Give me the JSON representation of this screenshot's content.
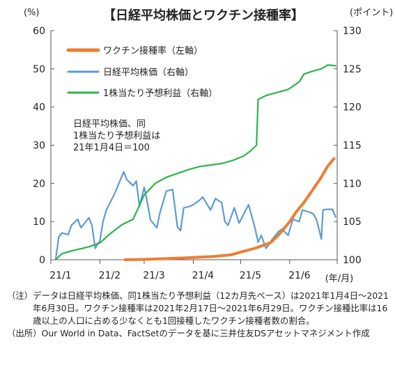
{
  "chart_data": {
    "type": "line",
    "title": "【日経平均株価とワクチン接種率】",
    "left_axis_unit": "(%)",
    "right_axis_unit": "(ポイント)",
    "x_unit": "(年/月)",
    "left_ylim": [
      0,
      60
    ],
    "left_ticks": [
      "0",
      "10",
      "20",
      "30",
      "40",
      "50",
      "60"
    ],
    "right_ylim": [
      100,
      130
    ],
    "right_ticks": [
      "100",
      "105",
      "110",
      "115",
      "120",
      "125",
      "130"
    ],
    "x_range": [
      "2021-01-01",
      "2021-07-01"
    ],
    "x_ticks": [
      {
        "date": "2021-01-01",
        "label": "21/1"
      },
      {
        "date": "2021-02-01",
        "label": "21/2"
      },
      {
        "date": "2021-03-01",
        "label": "21/3"
      },
      {
        "date": "2021-04-01",
        "label": "21/4"
      },
      {
        "date": "2021-05-01",
        "label": "21/5"
      },
      {
        "date": "2021-06-01",
        "label": "21/6"
      }
    ],
    "grid": false,
    "legend_position": "top-left",
    "annotation": [
      "日経平均株価、同",
      "1株当たり予想利益は",
      "21年1月4日＝100"
    ],
    "series": [
      {
        "name": "ワクチン接種率（左軸）",
        "axis": "left",
        "color": "#ed7d31",
        "points": [
          [
            "2021-02-17",
            0.0
          ],
          [
            "2021-03-01",
            0.1
          ],
          [
            "2021-03-15",
            0.3
          ],
          [
            "2021-04-01",
            0.6
          ],
          [
            "2021-04-15",
            0.9
          ],
          [
            "2021-04-25",
            1.3
          ],
          [
            "2021-05-01",
            2.0
          ],
          [
            "2021-05-10",
            3.0
          ],
          [
            "2021-05-20",
            4.5
          ],
          [
            "2021-05-25",
            6.5
          ],
          [
            "2021-06-01",
            10.0
          ],
          [
            "2021-06-05",
            12.5
          ],
          [
            "2021-06-10",
            15.0
          ],
          [
            "2021-06-15",
            18.0
          ],
          [
            "2021-06-20",
            21.0
          ],
          [
            "2021-06-25",
            24.5
          ],
          [
            "2021-06-29",
            26.5
          ]
        ]
      },
      {
        "name": "日経平均株価（右軸）",
        "axis": "right",
        "color": "#5b9bd5",
        "points": [
          [
            "2021-01-04",
            100.0
          ],
          [
            "2021-01-06",
            103.0
          ],
          [
            "2021-01-08",
            103.5
          ],
          [
            "2021-01-12",
            103.3
          ],
          [
            "2021-01-14",
            104.5
          ],
          [
            "2021-01-18",
            105.3
          ],
          [
            "2021-01-20",
            104.2
          ],
          [
            "2021-01-22",
            104.7
          ],
          [
            "2021-01-25",
            105.5
          ],
          [
            "2021-01-27",
            104.5
          ],
          [
            "2021-01-29",
            101.5
          ],
          [
            "2021-02-01",
            102.5
          ],
          [
            "2021-02-03",
            105.0
          ],
          [
            "2021-02-05",
            106.5
          ],
          [
            "2021-02-10",
            108.5
          ],
          [
            "2021-02-16",
            111.5
          ],
          [
            "2021-02-18",
            110.5
          ],
          [
            "2021-02-22",
            109.7
          ],
          [
            "2021-02-24",
            110.3
          ],
          [
            "2021-02-26",
            107.0
          ],
          [
            "2021-03-01",
            109.5
          ],
          [
            "2021-03-03",
            107.5
          ],
          [
            "2021-03-05",
            105.2
          ],
          [
            "2021-03-09",
            104.2
          ],
          [
            "2021-03-11",
            106.2
          ],
          [
            "2021-03-15",
            109.0
          ],
          [
            "2021-03-19",
            109.2
          ],
          [
            "2021-03-22",
            104.3
          ],
          [
            "2021-03-24",
            103.8
          ],
          [
            "2021-03-26",
            106.8
          ],
          [
            "2021-03-30",
            107.0
          ],
          [
            "2021-04-01",
            107.2
          ],
          [
            "2021-04-05",
            107.8
          ],
          [
            "2021-04-07",
            108.2
          ],
          [
            "2021-04-12",
            106.5
          ],
          [
            "2021-04-15",
            108.0
          ],
          [
            "2021-04-19",
            107.5
          ],
          [
            "2021-04-21",
            105.0
          ],
          [
            "2021-04-23",
            104.5
          ],
          [
            "2021-04-27",
            106.8
          ],
          [
            "2021-04-30",
            104.8
          ],
          [
            "2021-05-06",
            107.2
          ],
          [
            "2021-05-10",
            104.2
          ],
          [
            "2021-05-12",
            102.3
          ],
          [
            "2021-05-14",
            103.2
          ],
          [
            "2021-05-17",
            101.5
          ],
          [
            "2021-05-19",
            102.0
          ],
          [
            "2021-05-21",
            102.7
          ],
          [
            "2021-05-25",
            103.7
          ],
          [
            "2021-05-27",
            104.0
          ],
          [
            "2021-05-31",
            103.2
          ],
          [
            "2021-06-03",
            105.3
          ],
          [
            "2021-06-07",
            105.0
          ],
          [
            "2021-06-09",
            106.5
          ],
          [
            "2021-06-14",
            106.2
          ],
          [
            "2021-06-16",
            106.0
          ],
          [
            "2021-06-18",
            105.2
          ],
          [
            "2021-06-21",
            102.7
          ],
          [
            "2021-06-22",
            106.5
          ],
          [
            "2021-06-24",
            106.6
          ],
          [
            "2021-06-28",
            106.6
          ],
          [
            "2021-06-30",
            105.6
          ]
        ]
      },
      {
        "name": "1株当たり予想利益（右軸）",
        "axis": "right",
        "color": "#2bb34a",
        "points": [
          [
            "2021-01-04",
            100.0
          ],
          [
            "2021-01-08",
            100.8
          ],
          [
            "2021-01-15",
            101.2
          ],
          [
            "2021-01-25",
            101.7
          ],
          [
            "2021-02-01",
            102.2
          ],
          [
            "2021-02-08",
            103.5
          ],
          [
            "2021-02-15",
            104.6
          ],
          [
            "2021-02-22",
            105.3
          ],
          [
            "2021-03-01",
            108.5
          ],
          [
            "2021-03-08",
            110.0
          ],
          [
            "2021-03-15",
            110.8
          ],
          [
            "2021-03-22",
            111.3
          ],
          [
            "2021-03-29",
            111.8
          ],
          [
            "2021-04-05",
            112.2
          ],
          [
            "2021-04-12",
            112.4
          ],
          [
            "2021-04-19",
            112.6
          ],
          [
            "2021-04-26",
            113.0
          ],
          [
            "2021-05-03",
            113.6
          ],
          [
            "2021-05-07",
            114.2
          ],
          [
            "2021-05-11",
            115.0
          ],
          [
            "2021-05-12",
            121.0
          ],
          [
            "2021-05-17",
            121.5
          ],
          [
            "2021-05-24",
            121.9
          ],
          [
            "2021-05-31",
            122.3
          ],
          [
            "2021-06-07",
            123.3
          ],
          [
            "2021-06-10",
            124.3
          ],
          [
            "2021-06-14",
            124.6
          ],
          [
            "2021-06-21",
            125.0
          ],
          [
            "2021-06-25",
            125.5
          ],
          [
            "2021-06-30",
            125.4
          ]
        ]
      }
    ]
  },
  "notes": {
    "note_label": "（注）",
    "note_text": "データは日経平均株価、同1株当たり予想利益（12カ月先ベース）は2021年1月4日～2021年6月30日。ワクチン接種率は2021年2月17日～2021年6月29日。ワクチン接種比率は16歳以上の人口に占める少なくとも1回接種したワクチン接種者数の割合。",
    "source_label": "（出所）",
    "source_text": "Our World in Data、FactSetのデータを基に三井住友DSアセットマネジメント作成"
  }
}
